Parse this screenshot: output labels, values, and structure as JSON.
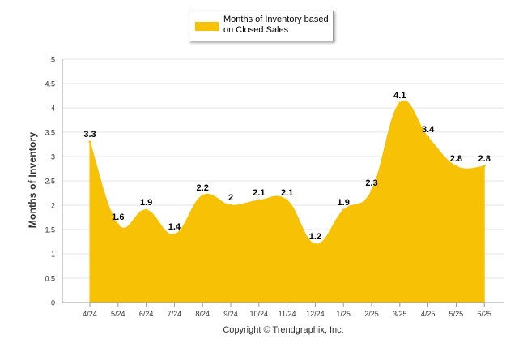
{
  "colors": {
    "series_fill": "#F7C106",
    "grid": "#E6E6E6",
    "axis": "#999999",
    "label": "#000000"
  },
  "chart_data": {
    "type": "area",
    "categories": [
      "4/24",
      "5/24",
      "6/24",
      "7/24",
      "8/24",
      "9/24",
      "10/24",
      "11/24",
      "12/24",
      "1/25",
      "2/25",
      "3/25",
      "4/25",
      "5/25",
      "6/25"
    ],
    "series": [
      {
        "name": "Months of Inventory based on Closed Sales",
        "values": [
          3.3,
          1.6,
          1.9,
          1.4,
          2.2,
          2,
          2.1,
          2.1,
          1.2,
          1.9,
          2.3,
          4.1,
          3.4,
          2.8,
          2.8
        ],
        "value_labels": [
          "3.3",
          "1.6",
          "1.9",
          "1.4",
          "2.2",
          "2",
          "2.1",
          "2.1",
          "1.2",
          "1.9",
          "2.3",
          "4.1",
          "3.4",
          "2.8",
          "2.8"
        ]
      }
    ],
    "ylabel": "Months of Inventory",
    "xlabel": "Copyright © Trendgraphix, Inc.",
    "ylim": [
      0,
      5
    ],
    "yticks": [
      "0",
      "0.5",
      "1",
      "1.5",
      "2",
      "2.5",
      "3",
      "3.5",
      "4",
      "4.5",
      "5"
    ],
    "grid": true,
    "legend_position": "top-center"
  },
  "legend": {
    "label_line1": "Months of Inventory based",
    "label_line2": "on Closed Sales"
  }
}
